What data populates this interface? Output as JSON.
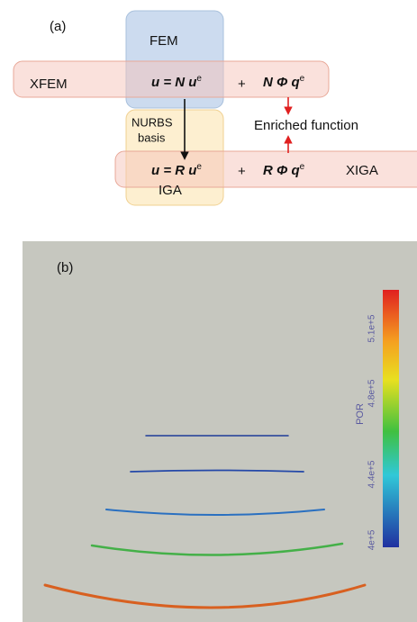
{
  "panel_a": {
    "label": "(a)",
    "boxes": {
      "fem": "FEM",
      "xfem": "XFEM",
      "iga": "IGA",
      "xiga": "XIGA"
    },
    "fem_equation": {
      "main": "u = N u",
      "sup": "e"
    },
    "xfem_plus": "+",
    "xfem_enrichment": {
      "main": "N Φ q",
      "sup": "e"
    },
    "iga_equation": {
      "main": "u = R u",
      "sup": "e"
    },
    "xiga_plus": "+",
    "xiga_enrichment": {
      "main": "R Φ q",
      "sup": "e"
    },
    "nurbs_label": [
      "NURBS",
      "basis"
    ],
    "enriched_label": "Enriched function"
  },
  "panel_b": {
    "label": "(b)",
    "colorbar_title": "POR",
    "colorbar_ticks": [
      "5.1e+5",
      "4.8e+5",
      "4.4e+5",
      "4e+5"
    ]
  }
}
